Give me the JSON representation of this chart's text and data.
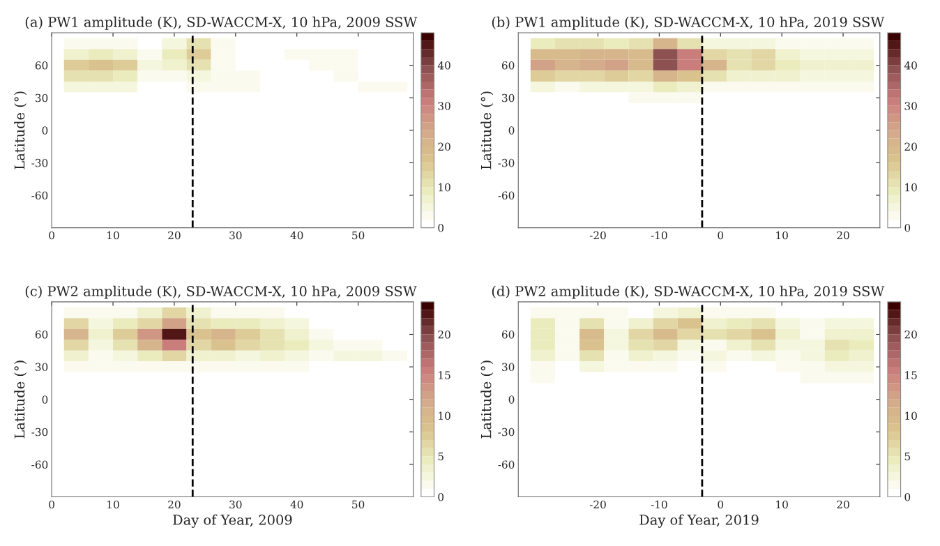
{
  "chart_data": [
    {
      "type": "heatmap",
      "title": "(a) PW1 amplitude (K), SD-WACCM-X, 10 hPa, 2009 SSW",
      "ylabel": "Latitude (°)",
      "x": [
        4,
        8,
        12,
        16,
        20,
        24,
        28,
        32,
        36,
        40,
        44,
        48,
        52,
        56
      ],
      "y": [
        80,
        70,
        60,
        50,
        40,
        30,
        20
      ],
      "cells": [
        [
          3,
          3,
          3,
          1,
          5,
          10,
          2,
          0,
          0,
          1,
          1,
          0,
          0,
          0
        ],
        [
          6,
          8,
          7,
          2,
          8,
          14,
          3,
          0,
          0,
          3,
          2,
          2,
          1,
          0
        ],
        [
          15,
          17,
          14,
          4,
          6,
          10,
          2,
          0,
          0,
          1,
          2,
          2,
          1,
          0
        ],
        [
          10,
          11,
          9,
          2,
          3,
          5,
          3,
          3,
          1,
          0,
          1,
          2,
          1,
          1
        ],
        [
          5,
          5,
          4,
          1,
          1,
          3,
          3,
          3,
          1,
          0,
          0,
          1,
          2,
          2
        ],
        [
          0,
          0,
          0,
          0,
          0,
          0,
          1,
          0,
          0,
          0,
          0,
          0,
          0,
          0
        ],
        [
          0,
          0,
          0,
          0,
          0,
          0,
          0,
          0,
          0,
          0,
          0,
          0,
          0,
          0
        ]
      ],
      "xlim": [
        0,
        59
      ],
      "ylim": [
        -90,
        90
      ],
      "xticks": [
        0,
        10,
        20,
        30,
        40,
        50
      ],
      "yticks": [
        -60,
        -30,
        0,
        30,
        60
      ],
      "clim": [
        0,
        48
      ],
      "cticks": [
        0,
        10,
        20,
        30,
        40
      ],
      "ref_lines": [
        {
          "axis": "x",
          "value": 23,
          "color": "#000000",
          "line_style": "dashed"
        }
      ]
    },
    {
      "type": "heatmap",
      "title": "(b) PW1 amplitude (K), SD-WACCM-X, 10 hPa, 2019 SSW",
      "ylabel": "Latitude (°)",
      "x": [
        -29,
        -25,
        -21,
        -17,
        -13,
        -9,
        -5,
        -1,
        3,
        7,
        11,
        15,
        19,
        23
      ],
      "y": [
        80,
        70,
        60,
        50,
        40,
        30,
        20
      ],
      "cells": [
        [
          8,
          10,
          10,
          9,
          10,
          20,
          10,
          4,
          4,
          4,
          3,
          3,
          3,
          3
        ],
        [
          18,
          18,
          20,
          20,
          18,
          38,
          30,
          12,
          10,
          12,
          6,
          5,
          5,
          5
        ],
        [
          24,
          20,
          22,
          25,
          18,
          38,
          30,
          20,
          10,
          13,
          8,
          6,
          6,
          6
        ],
        [
          15,
          12,
          12,
          14,
          12,
          20,
          16,
          10,
          6,
          7,
          6,
          5,
          5,
          5
        ],
        [
          4,
          3,
          4,
          4,
          5,
          8,
          6,
          2,
          2,
          3,
          3,
          2,
          2,
          2
        ],
        [
          1,
          1,
          1,
          1,
          2,
          3,
          2,
          0,
          1,
          1,
          1,
          1,
          1,
          1
        ],
        [
          1,
          0,
          1,
          1,
          0,
          0,
          0,
          0,
          0,
          0,
          1,
          0,
          1,
          0
        ]
      ],
      "xlim": [
        -33,
        26
      ],
      "ylim": [
        -90,
        90
      ],
      "xticks": [
        -20,
        -10,
        0,
        10,
        20
      ],
      "yticks": [
        -60,
        -30,
        0,
        30,
        60
      ],
      "clim": [
        0,
        48
      ],
      "cticks": [
        0,
        10,
        20,
        30,
        40
      ],
      "ref_lines": [
        {
          "axis": "x",
          "value": -3,
          "color": "#000000",
          "line_style": "dashed"
        }
      ]
    },
    {
      "type": "heatmap",
      "title": "(c) PW2 amplitude (K), SD-WACCM-X, 10 hPa, 2009 SSW",
      "xlabel": "Day of Year, 2009",
      "ylabel": "Latitude (°)",
      "x": [
        4,
        8,
        12,
        16,
        20,
        24,
        28,
        32,
        36,
        40,
        44,
        48,
        52,
        56
      ],
      "y": [
        80,
        70,
        60,
        50,
        40,
        30,
        20
      ],
      "cells": [
        [
          1,
          1,
          1,
          3,
          6,
          3,
          1,
          1,
          1,
          0,
          0,
          0,
          0,
          0
        ],
        [
          6,
          2,
          4,
          6,
          12,
          5,
          4,
          4,
          3,
          2,
          0,
          0,
          0,
          0
        ],
        [
          10,
          3,
          7,
          13,
          22,
          8,
          10,
          7,
          5,
          3,
          1,
          0,
          0,
          0
        ],
        [
          6,
          2,
          5,
          10,
          15,
          6,
          8,
          6,
          5,
          4,
          2,
          1,
          1,
          0
        ],
        [
          3,
          1,
          2,
          4,
          6,
          3,
          3,
          2,
          3,
          2,
          1,
          2,
          2,
          1
        ],
        [
          1,
          1,
          1,
          1,
          1,
          1,
          1,
          1,
          1,
          1,
          0,
          0,
          0,
          0
        ],
        [
          0,
          0,
          0,
          0,
          0,
          0,
          0,
          0,
          0,
          0,
          0,
          0,
          0,
          0
        ]
      ],
      "xlim": [
        0,
        59
      ],
      "ylim": [
        -90,
        90
      ],
      "xticks": [
        0,
        10,
        20,
        30,
        40,
        50
      ],
      "yticks": [
        -60,
        -30,
        0,
        30,
        60
      ],
      "clim": [
        0,
        24
      ],
      "cticks": [
        0,
        5,
        10,
        15,
        20
      ],
      "ref_lines": [
        {
          "axis": "x",
          "value": 23,
          "color": "#000000",
          "line_style": "dashed"
        }
      ]
    },
    {
      "type": "heatmap",
      "title": "(d) PW2 amplitude (K), SD-WACCM-X, 10 hPa, 2019 SSW",
      "xlabel": "Day of Year, 2019",
      "ylabel": "Latitude (°)",
      "x": [
        -29,
        -25,
        -21,
        -17,
        -13,
        -9,
        -5,
        -1,
        3,
        7,
        11,
        15,
        19,
        23
      ],
      "y": [
        80,
        70,
        60,
        50,
        40,
        30,
        20
      ],
      "cells": [
        [
          1,
          1,
          1,
          1,
          0,
          2,
          3,
          1,
          1,
          1,
          0,
          0,
          0,
          0
        ],
        [
          4,
          1,
          5,
          1,
          3,
          6,
          8,
          3,
          4,
          5,
          2,
          1,
          2,
          2
        ],
        [
          4,
          1,
          9,
          2,
          6,
          9,
          6,
          5,
          6,
          8,
          3,
          1,
          3,
          3
        ],
        [
          4,
          1,
          8,
          2,
          5,
          6,
          2,
          1,
          3,
          5,
          2,
          2,
          5,
          4
        ],
        [
          3,
          1,
          5,
          1,
          3,
          2,
          1,
          2,
          1,
          2,
          1,
          2,
          4,
          3
        ],
        [
          1,
          0,
          2,
          1,
          1,
          1,
          0,
          1,
          0,
          0,
          1,
          1,
          2,
          2
        ],
        [
          1,
          0,
          0,
          0,
          0,
          0,
          0,
          0,
          0,
          0,
          0,
          1,
          1,
          1
        ]
      ],
      "xlim": [
        -33,
        26
      ],
      "ylim": [
        -90,
        90
      ],
      "xticks": [
        -20,
        -10,
        0,
        10,
        20
      ],
      "yticks": [
        -60,
        -30,
        0,
        30,
        60
      ],
      "clim": [
        0,
        24
      ],
      "cticks": [
        0,
        5,
        10,
        15,
        20
      ],
      "ref_lines": [
        {
          "axis": "x",
          "value": -3,
          "color": "#000000",
          "line_style": "dashed"
        }
      ]
    }
  ]
}
